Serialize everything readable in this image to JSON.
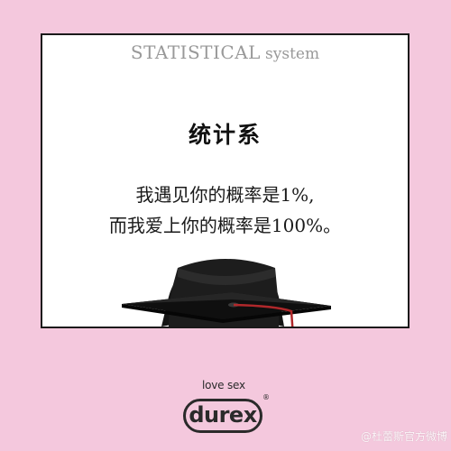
{
  "card": {
    "header_big1": "STATISTICAL",
    "header_small": "system",
    "title": "统计系",
    "line1": "我遇见你的概率是1%,",
    "line2": "而我爱上你的概率是100%。"
  },
  "logo": {
    "slogan": "love sex",
    "brand": "durex",
    "reg_mark": "®"
  },
  "watermark": "@杜蕾斯官方微博",
  "colors": {
    "background": "#f4c8dd",
    "card": "#ffffff",
    "header_text": "#999999",
    "tassel": "#b0282b",
    "cap": "#111111"
  },
  "icons": [
    "graduation-cap-icon",
    "durex-logo"
  ]
}
